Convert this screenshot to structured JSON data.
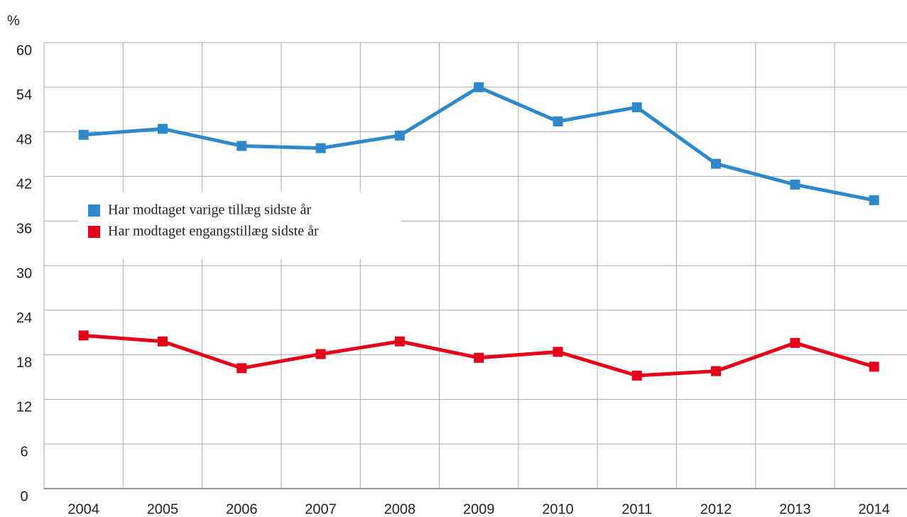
{
  "chart_data": {
    "type": "line",
    "y_label": "%",
    "categories": [
      "2004",
      "2005",
      "2006",
      "2007",
      "2008",
      "2009",
      "2010",
      "2011",
      "2012",
      "2013",
      "2014"
    ],
    "series": [
      {
        "name": "Har modtaget varige tillæg sidste år",
        "color": "#2e88c9",
        "values": [
          47.6,
          48.4,
          46.1,
          45.8,
          47.5,
          54.0,
          49.4,
          51.3,
          43.7,
          40.9,
          38.8
        ]
      },
      {
        "name": "Har modtaget engangstillæg sidste år",
        "color": "#e3001b",
        "values": [
          20.6,
          19.8,
          16.2,
          18.1,
          19.8,
          17.6,
          18.4,
          15.2,
          15.8,
          19.6,
          16.4
        ]
      }
    ],
    "ylim": [
      0,
      60
    ],
    "yticks": [
      0,
      6,
      12,
      18,
      24,
      30,
      36,
      42,
      48,
      54,
      60
    ],
    "grid": true
  }
}
